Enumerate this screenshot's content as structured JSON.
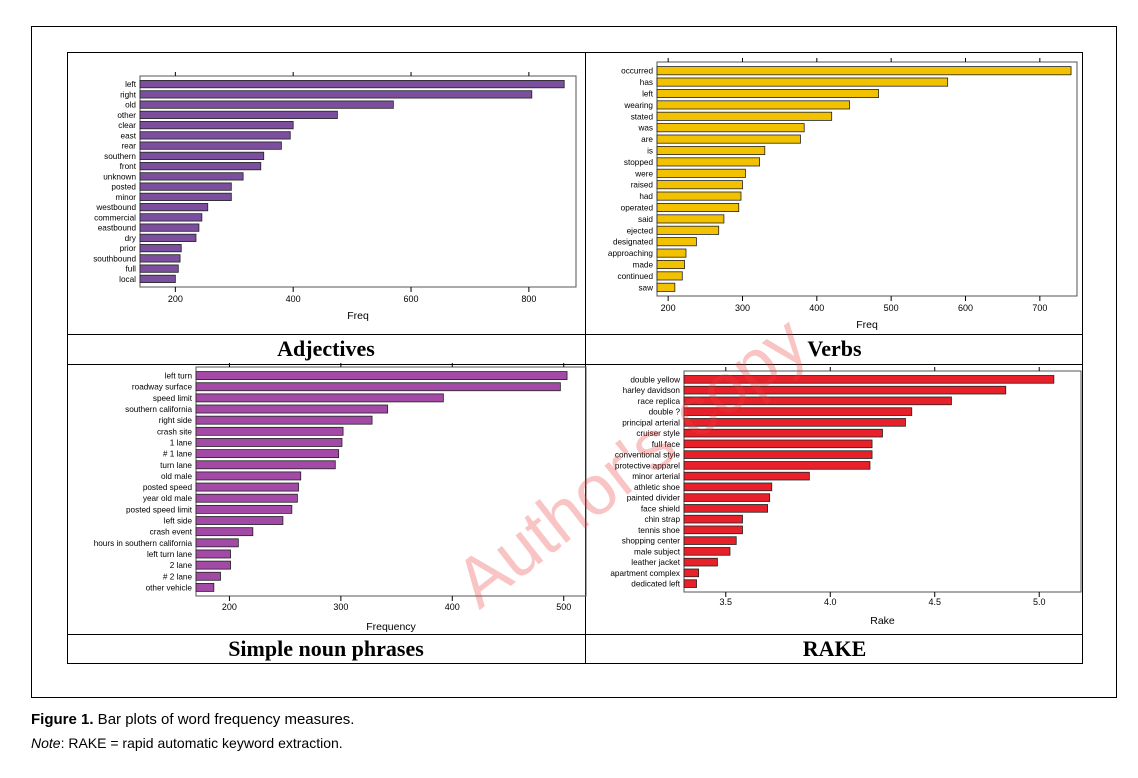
{
  "figure": {
    "caption_label": "Figure 1.",
    "caption_text": " Bar plots of word frequency measures.",
    "note_label": "Note",
    "note_text": ": RAKE = rapid automatic keyword extraction."
  },
  "watermark": "Author's copy",
  "chart_data": [
    {
      "type": "bar",
      "orientation": "horizontal",
      "title": "Adjectives",
      "xlabel": "Freq",
      "color": "#7b4f9e",
      "xlim": [
        140,
        880
      ],
      "xticks": [
        200,
        400,
        600,
        800
      ],
      "categories": [
        "left",
        "right",
        "old",
        "other",
        "clear",
        "east",
        "rear",
        "southern",
        "front",
        "unknown",
        "posted",
        "minor",
        "westbound",
        "commercial",
        "eastbound",
        "dry",
        "prior",
        "southbound",
        "full",
        "local"
      ],
      "values": [
        860,
        805,
        570,
        475,
        400,
        395,
        380,
        350,
        345,
        315,
        295,
        295,
        255,
        245,
        240,
        235,
        210,
        208,
        205,
        200
      ]
    },
    {
      "type": "bar",
      "orientation": "horizontal",
      "title": "Verbs",
      "xlabel": "Freq",
      "color": "#f2c200",
      "xlim": [
        185,
        750
      ],
      "xticks": [
        200,
        300,
        400,
        500,
        600,
        700
      ],
      "categories": [
        "occurred",
        "has",
        "left",
        "wearing",
        "stated",
        "was",
        "are",
        "is",
        "stopped",
        "were",
        "raised",
        "had",
        "operated",
        "said",
        "ejected",
        "designated",
        "approaching",
        "made",
        "continued",
        "saw"
      ],
      "values": [
        742,
        576,
        483,
        444,
        420,
        383,
        378,
        330,
        323,
        304,
        300,
        298,
        295,
        275,
        268,
        238,
        224,
        222,
        219,
        209
      ]
    },
    {
      "type": "bar",
      "orientation": "horizontal",
      "title": "Simple noun phrases",
      "xlabel": "Frequency",
      "color": "#a34aa6",
      "xlim": [
        170,
        520
      ],
      "xticks": [
        200,
        300,
        400,
        500
      ],
      "categories": [
        "left turn",
        "roadway surface",
        "speed limit",
        "southern california",
        "right side",
        "crash site",
        "1 lane",
        "# 1 lane",
        "turn lane",
        "old male",
        "posted speed",
        "year old male",
        "posted speed limit",
        "left side",
        "crash event",
        "hours in southern california",
        "left turn lane",
        "2 lane",
        "# 2 lane",
        "other vehicle"
      ],
      "values": [
        503,
        497,
        392,
        342,
        328,
        302,
        301,
        298,
        295,
        264,
        262,
        261,
        256,
        248,
        221,
        208,
        201,
        201,
        192,
        186
      ]
    },
    {
      "type": "bar",
      "orientation": "horizontal",
      "title": "RAKE",
      "xlabel": "Rake",
      "color": "#e8202a",
      "xlim": [
        3.3,
        5.2
      ],
      "xticks": [
        3.5,
        4.0,
        4.5,
        5.0
      ],
      "categories": [
        "double yellow",
        "harley davidson",
        "race replica",
        "double ?",
        "principal arterial",
        "cruiser style",
        "full face",
        "conventional style",
        "protective apparel",
        "minor arterial",
        "athletic shoe",
        "painted divider",
        "face shield",
        "chin strap",
        "tennis shoe",
        "shopping center",
        "male subject",
        "leather jacket",
        "apartment complex",
        "dedicated left"
      ],
      "values": [
        5.07,
        4.84,
        4.58,
        4.39,
        4.36,
        4.25,
        4.2,
        4.2,
        4.19,
        3.9,
        3.72,
        3.71,
        3.7,
        3.58,
        3.58,
        3.55,
        3.52,
        3.46,
        3.37,
        3.36
      ]
    }
  ]
}
